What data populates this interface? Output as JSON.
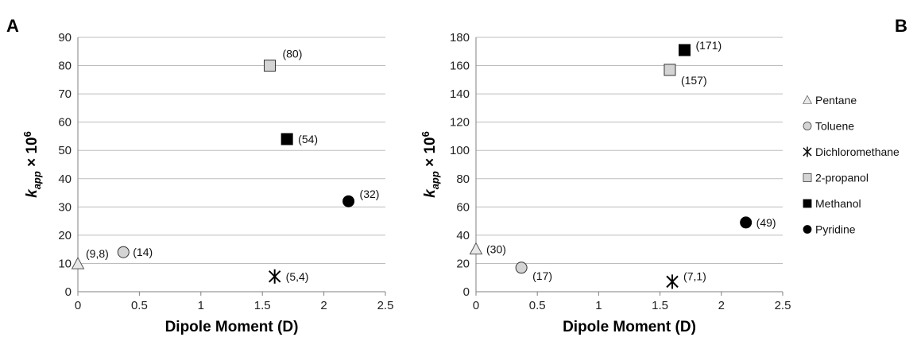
{
  "chart_data": [
    {
      "type": "scatter",
      "panel": "A",
      "xlabel": "Dipole Moment (D)",
      "ylabel": {
        "k": "k",
        "sub": "app",
        "times": "× 10",
        "sup": "6"
      },
      "xlim": [
        0,
        2.5
      ],
      "ylim": [
        0,
        90
      ],
      "xticks": [
        "0",
        "0.5",
        "1",
        "1.5",
        "2",
        "2.5"
      ],
      "xtick_values": [
        0,
        0.5,
        1,
        1.5,
        2,
        2.5
      ],
      "yticks": [
        "0",
        "10",
        "20",
        "30",
        "40",
        "50",
        "60",
        "70",
        "80",
        "90"
      ],
      "ytick_values": [
        0,
        10,
        20,
        30,
        40,
        50,
        60,
        70,
        80,
        90
      ],
      "grid": "horizontal",
      "points": [
        {
          "series": "Pentane",
          "x": 0,
          "y": 9.8,
          "label": "(9,8)"
        },
        {
          "series": "Toluene",
          "x": 0.37,
          "y": 14,
          "label": "(14)"
        },
        {
          "series": "Dichloromethane",
          "x": 1.6,
          "y": 5.4,
          "label": "(5,4)"
        },
        {
          "series": "2-propanol",
          "x": 1.56,
          "y": 80,
          "label": "(80)"
        },
        {
          "series": "Methanol",
          "x": 1.7,
          "y": 54,
          "label": "(54)"
        },
        {
          "series": "Pyridine",
          "x": 2.2,
          "y": 32,
          "label": "(32)"
        }
      ]
    },
    {
      "type": "scatter",
      "panel": "B",
      "xlabel": "Dipole Moment (D)",
      "ylabel": {
        "k": "k",
        "sub": "app",
        "times": "× 10",
        "sup": "6"
      },
      "xlim": [
        0,
        2.5
      ],
      "ylim": [
        0,
        180
      ],
      "xticks": [
        "0",
        "0.5",
        "1",
        "1.5",
        "2",
        "2.5"
      ],
      "xtick_values": [
        0,
        0.5,
        1,
        1.5,
        2,
        2.5
      ],
      "yticks": [
        "0",
        "20",
        "40",
        "60",
        "80",
        "100",
        "120",
        "140",
        "160",
        "180"
      ],
      "ytick_values": [
        0,
        20,
        40,
        60,
        80,
        100,
        120,
        140,
        160,
        180
      ],
      "grid": "horizontal",
      "points": [
        {
          "series": "Pentane",
          "x": 0,
          "y": 30,
          "label": "(30)"
        },
        {
          "series": "Toluene",
          "x": 0.37,
          "y": 17,
          "label": "(17)"
        },
        {
          "series": "Dichloromethane",
          "x": 1.6,
          "y": 7.1,
          "label": "(7,1)"
        },
        {
          "series": "2-propanol",
          "x": 1.58,
          "y": 157,
          "label": "(157)"
        },
        {
          "series": "Methanol",
          "x": 1.7,
          "y": 171,
          "label": "(171)"
        },
        {
          "series": "Pyridine",
          "x": 2.2,
          "y": 49,
          "label": "(49)"
        }
      ]
    }
  ],
  "legend": {
    "placement": "right",
    "items": [
      {
        "name": "Pentane",
        "marker": "triangle-open"
      },
      {
        "name": "Toluene",
        "marker": "circle-gray"
      },
      {
        "name": "Dichloromethane",
        "marker": "star-x"
      },
      {
        "name": "2-propanol",
        "marker": "square-gray"
      },
      {
        "name": "Methanol",
        "marker": "square-black"
      },
      {
        "name": "Pyridine",
        "marker": "circle-black"
      }
    ]
  },
  "colors": {
    "gray_fill": "#d4d4d4",
    "black_fill": "#000000",
    "open_fill": "#e8e8e8",
    "grid": "#bdbdbd",
    "axis": "#808080"
  }
}
